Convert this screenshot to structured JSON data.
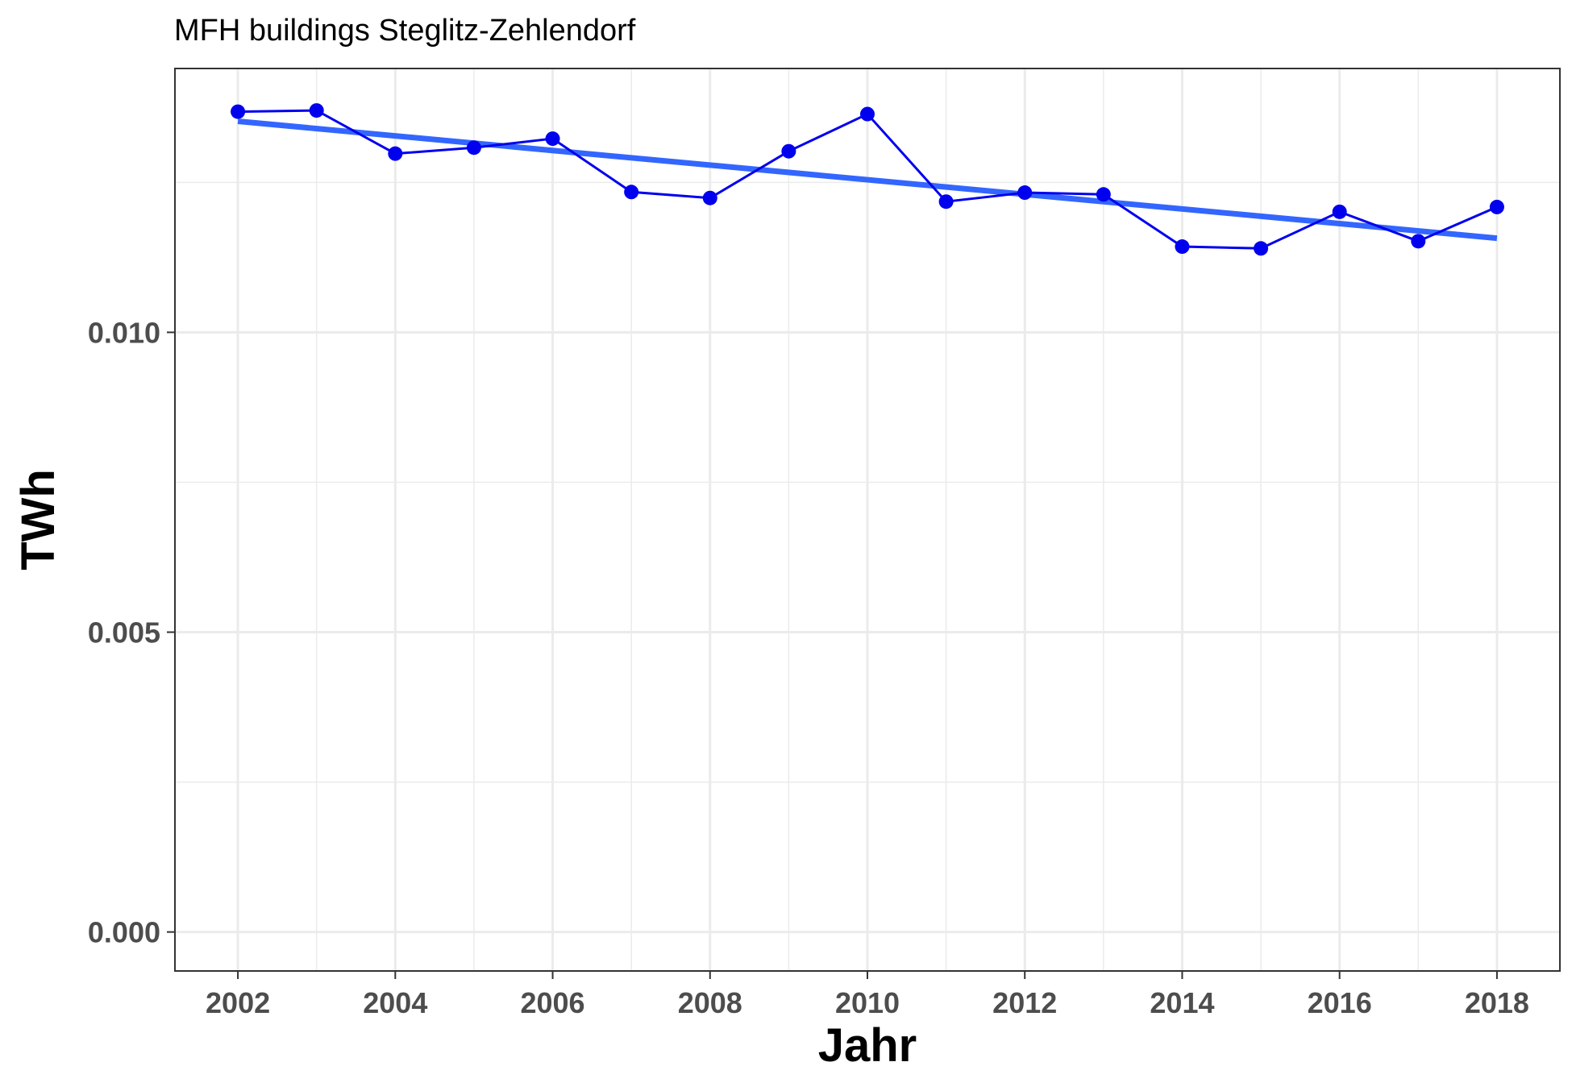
{
  "chart_data": {
    "type": "line",
    "title": "MFH buildings Steglitz-Zehlendorf",
    "xlabel": "Jahr",
    "ylabel": "TWh",
    "xlim": [
      2001.2,
      2018.8
    ],
    "ylim": [
      -0.00065,
      0.0144
    ],
    "x_ticks": [
      2002,
      2004,
      2006,
      2008,
      2010,
      2012,
      2014,
      2016,
      2018
    ],
    "x_tick_labels": [
      "2002",
      "2004",
      "2006",
      "2008",
      "2010",
      "2012",
      "2014",
      "2016",
      "2018"
    ],
    "y_ticks": [
      0.0,
      0.005,
      0.01
    ],
    "y_tick_labels": [
      "0.000",
      "0.005",
      "0.010"
    ],
    "grid": true,
    "series": [
      {
        "color": "#0000ee",
        "x": [
          2002,
          2003,
          2004,
          2005,
          2006,
          2007,
          2008,
          2009,
          2010,
          2011,
          2012,
          2013,
          2014,
          2015,
          2016,
          2017,
          2018
        ],
        "values": [
          0.01368,
          0.0137,
          0.01298,
          0.01308,
          0.01323,
          0.01234,
          0.01224,
          0.01302,
          0.01364,
          0.01218,
          0.01233,
          0.0123,
          0.01143,
          0.0114,
          0.01201,
          0.01152,
          0.01209
        ]
      }
    ],
    "trend_line": {
      "color": "#3366ff",
      "x": [
        2002,
        2018
      ],
      "values": [
        0.01352,
        0.01157
      ]
    }
  }
}
